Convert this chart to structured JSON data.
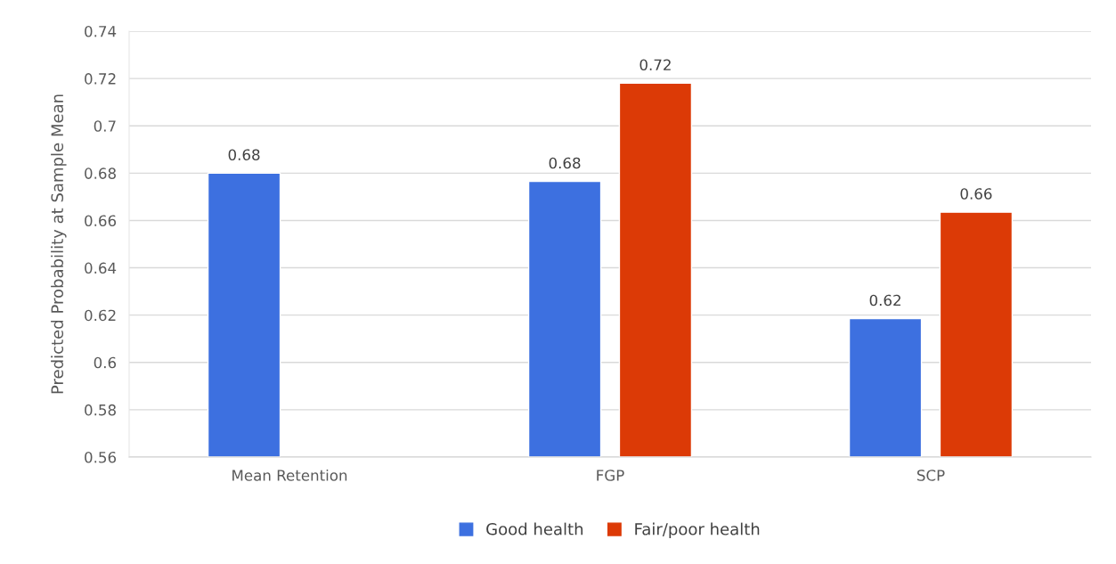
{
  "chart_data": {
    "type": "bar",
    "ylabel": "Predicted Probability at Sample Mean",
    "categories": [
      "Mean Retention",
      "FGP",
      "SCP"
    ],
    "series": [
      {
        "name": "Good health",
        "color": "#3d70e0",
        "values": [
          0.68,
          0.6765,
          0.6185
        ],
        "value_labels": [
          "0.68",
          "0.68",
          "0.62"
        ]
      },
      {
        "name": "Fair/poor health",
        "color": "#dc3a06",
        "values": [
          null,
          0.718,
          0.6635
        ],
        "value_labels": [
          null,
          "0.72",
          "0.66"
        ]
      }
    ],
    "ylim": [
      0.56,
      0.74
    ],
    "yticks": [
      0.56,
      0.58,
      "0.6",
      0.62,
      0.64,
      0.66,
      0.68,
      "0.7",
      0.72,
      0.74
    ],
    "grid": "y",
    "legend": "bottom"
  }
}
